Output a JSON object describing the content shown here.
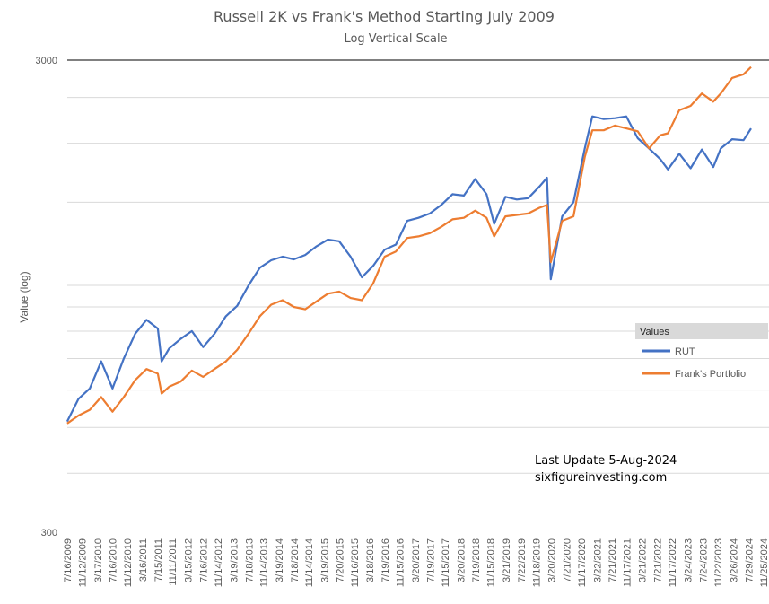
{
  "chart_data": {
    "type": "line",
    "title": "Russell 2K vs Frank's Method Starting July 2009",
    "subtitle": "Log Vertical Scale",
    "ylabel": "Value (log)",
    "y_scale": "log",
    "ylim": [
      300,
      3000
    ],
    "y_tick_labels": [
      "3000",
      "300"
    ],
    "x_tick_labels": [
      "7/16/2009",
      "11/12/2009",
      "3/17/2010",
      "7/16/2010",
      "11/12/2010",
      "3/16/2011",
      "7/15/2011",
      "11/11/2011",
      "3/15/2012",
      "7/16/2012",
      "11/14/2012",
      "3/19/2013",
      "7/18/2013",
      "11/14/2013",
      "3/19/2014",
      "7/18/2014",
      "11/14/2014",
      "3/19/2015",
      "7/20/2015",
      "11/16/2015",
      "3/18/2016",
      "7/19/2016",
      "11/15/2016",
      "3/20/2017",
      "7/19/2017",
      "11/15/2017",
      "3/20/2018",
      "7/19/2018",
      "11/15/2018",
      "3/21/2019",
      "7/22/2019",
      "11/18/2019",
      "3/20/2020",
      "7/21/2020",
      "11/17/2020",
      "3/22/2021",
      "7/21/2021",
      "11/17/2021",
      "3/21/2022",
      "7/21/2022",
      "11/17/2022",
      "3/24/2023",
      "7/24/2023",
      "11/22/2023",
      "3/26/2024",
      "7/29/2024",
      "11/25/2024"
    ],
    "grid": true,
    "legend": {
      "title": "Values",
      "position": "right"
    },
    "annotations": [
      "Last Update 5-Aug-2024",
      "sixfigureinvesting.com"
    ],
    "x": [
      "2009-07",
      "2009-10",
      "2010-01",
      "2010-04",
      "2010-07",
      "2010-10",
      "2011-01",
      "2011-04",
      "2011-07",
      "2011-08",
      "2011-10",
      "2012-01",
      "2012-04",
      "2012-07",
      "2012-10",
      "2013-01",
      "2013-04",
      "2013-07",
      "2013-10",
      "2014-01",
      "2014-04",
      "2014-07",
      "2014-10",
      "2015-01",
      "2015-04",
      "2015-07",
      "2015-10",
      "2016-01",
      "2016-04",
      "2016-07",
      "2016-10",
      "2017-01",
      "2017-04",
      "2017-07",
      "2017-10",
      "2018-01",
      "2018-04",
      "2018-07",
      "2018-10",
      "2018-12",
      "2019-03",
      "2019-06",
      "2019-09",
      "2019-12",
      "2020-02",
      "2020-03",
      "2020-06",
      "2020-09",
      "2020-12",
      "2021-02",
      "2021-05",
      "2021-08",
      "2021-11",
      "2022-02",
      "2022-05",
      "2022-08",
      "2022-10",
      "2023-01",
      "2023-04",
      "2023-07",
      "2023-10",
      "2023-12",
      "2024-03",
      "2024-06",
      "2024-08"
    ],
    "series": [
      {
        "name": "RUT",
        "color": "#4472C4",
        "values": [
          515,
          575,
          605,
          690,
          605,
          700,
          790,
          845,
          810,
          690,
          735,
          770,
          800,
          740,
          790,
          860,
          905,
          1000,
          1090,
          1130,
          1150,
          1135,
          1160,
          1210,
          1250,
          1240,
          1150,
          1040,
          1100,
          1190,
          1220,
          1370,
          1390,
          1420,
          1480,
          1560,
          1550,
          1680,
          1560,
          1350,
          1540,
          1520,
          1530,
          1620,
          1690,
          1030,
          1400,
          1500,
          1950,
          2280,
          2250,
          2260,
          2280,
          2050,
          1950,
          1850,
          1760,
          1900,
          1770,
          1940,
          1780,
          1950,
          2040,
          2030,
          2150
        ]
      },
      {
        "name": "Frank's Portfolio",
        "color": "#ED7D31",
        "values": [
          510,
          530,
          545,
          580,
          540,
          580,
          630,
          665,
          650,
          590,
          610,
          625,
          660,
          640,
          665,
          690,
          730,
          790,
          860,
          910,
          930,
          900,
          890,
          925,
          960,
          970,
          940,
          930,
          1010,
          1150,
          1180,
          1260,
          1270,
          1290,
          1330,
          1380,
          1390,
          1440,
          1390,
          1270,
          1400,
          1410,
          1420,
          1460,
          1480,
          1120,
          1370,
          1400,
          1870,
          2130,
          2130,
          2180,
          2150,
          2120,
          1950,
          2080,
          2100,
          2350,
          2400,
          2550,
          2450,
          2550,
          2750,
          2800,
          2900
        ]
      }
    ]
  }
}
